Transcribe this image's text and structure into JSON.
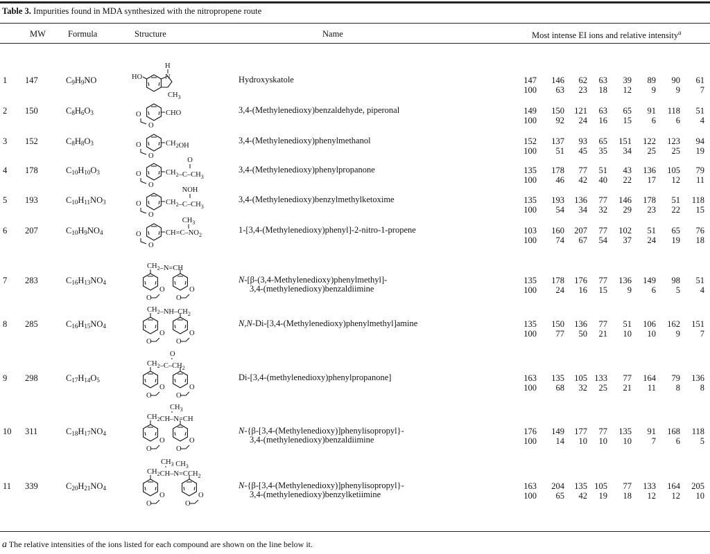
{
  "caption": {
    "label": "Table 3.",
    "text": "Impurities found in MDA synthesized with the nitropropene route"
  },
  "headers": {
    "mw": "MW",
    "formula": "Formula",
    "structure": "Structure",
    "name": "Name",
    "ions": "Most intense EI ions and relative intensity",
    "ions_footnote_mark": "a"
  },
  "rows": [
    {
      "no": "1",
      "mw": "147",
      "formula": "C9H9NO",
      "structure": {
        "type": "indole",
        "labels": [
          "HO",
          "H",
          "N",
          "CH3"
        ]
      },
      "name_prefix": "",
      "name": [
        "Hydroxyskatole"
      ],
      "ions": [
        "147",
        "146",
        "62",
        "63",
        "39",
        "89",
        "90",
        "61"
      ],
      "intensity": [
        "100",
        "63",
        "23",
        "18",
        "12",
        "9",
        "9",
        "7"
      ]
    },
    {
      "no": "2",
      "mw": "150",
      "formula": "C8H6O3",
      "structure": {
        "type": "mono",
        "substituent": "CHO",
        "top": ""
      },
      "name_prefix": "",
      "name": [
        "3,4-(Methylenedioxy)benzaldehyde, piperonal"
      ],
      "ions": [
        "149",
        "150",
        "121",
        "63",
        "65",
        "91",
        "118",
        "51"
      ],
      "intensity": [
        "100",
        "92",
        "24",
        "16",
        "15",
        "6",
        "6",
        "4"
      ]
    },
    {
      "no": "3",
      "mw": "152",
      "formula": "C8H8O3",
      "structure": {
        "type": "mono",
        "substituent": "CH2OH",
        "top": ""
      },
      "name_prefix": "",
      "name": [
        "3,4-(Methylenedioxy)phenylmethanol"
      ],
      "ions": [
        "152",
        "137",
        "93",
        "65",
        "151",
        "122",
        "123",
        "94"
      ],
      "intensity": [
        "100",
        "51",
        "45",
        "35",
        "34",
        "25",
        "25",
        "19"
      ]
    },
    {
      "no": "4",
      "mw": "178",
      "formula": "C10H10O3",
      "structure": {
        "type": "mono",
        "substituent": "CH2–C–CH3",
        "top": "O"
      },
      "name_prefix": "",
      "name": [
        "3,4-(Methylenedioxy)phenylpropanone"
      ],
      "ions": [
        "135",
        "178",
        "77",
        "51",
        "43",
        "136",
        "105",
        "79"
      ],
      "intensity": [
        "100",
        "46",
        "42",
        "40",
        "22",
        "17",
        "12",
        "11"
      ]
    },
    {
      "no": "5",
      "mw": "193",
      "formula": "C10H11NO3",
      "structure": {
        "type": "mono",
        "substituent": "CH2–C–CH3",
        "top": "NOH"
      },
      "name_prefix": "",
      "name": [
        "3,4-(Methylenedioxy)benzylmethylketoxime"
      ],
      "ions": [
        "135",
        "193",
        "136",
        "77",
        "146",
        "178",
        "51",
        "118"
      ],
      "intensity": [
        "100",
        "54",
        "34",
        "32",
        "29",
        "23",
        "22",
        "15"
      ]
    },
    {
      "no": "6",
      "mw": "207",
      "formula": "C10H9NO4",
      "structure": {
        "type": "mono",
        "substituent": "CH=C–NO2",
        "top": "CH3"
      },
      "name_prefix": "",
      "name": [
        "1-[3,4-(Methylenedioxy)phenyl]-2-nitro-1-propene"
      ],
      "ions": [
        "103",
        "160",
        "207",
        "77",
        "102",
        "51",
        "65",
        "76"
      ],
      "intensity": [
        "100",
        "74",
        "67",
        "54",
        "37",
        "24",
        "19",
        "18"
      ]
    },
    {
      "no": "7",
      "mw": "283",
      "formula": "C16H13NO4",
      "structure": {
        "type": "di",
        "chain": "CH2–N=CH",
        "top": ""
      },
      "name_prefix": "N",
      "name": [
        "-[β-(3,4-Methylenedioxy)phenylmethyl]-",
        "3,4-(methylenedioxy)benzaldiimine"
      ],
      "ions": [
        "135",
        "178",
        "176",
        "77",
        "136",
        "149",
        "98",
        "51"
      ],
      "intensity": [
        "100",
        "24",
        "16",
        "15",
        "9",
        "6",
        "5",
        "4"
      ]
    },
    {
      "no": "8",
      "mw": "285",
      "formula": "C16H15NO4",
      "structure": {
        "type": "di",
        "chain": "CH2–NH–CH2",
        "top": ""
      },
      "name_prefix": "N,N",
      "name": [
        "-Di-[3,4-(Methylenedioxy)phenylmethyl]amine"
      ],
      "ions": [
        "135",
        "150",
        "136",
        "77",
        "51",
        "106",
        "162",
        "151"
      ],
      "intensity": [
        "100",
        "77",
        "50",
        "21",
        "10",
        "10",
        "9",
        "7"
      ]
    },
    {
      "no": "9",
      "mw": "298",
      "formula": "C17H14O5",
      "structure": {
        "type": "di",
        "chain": "CH2–C–CH2",
        "top": "O"
      },
      "name_prefix": "",
      "name": [
        "Di-[3,4-(methylenedioxy)phenylpropanone]"
      ],
      "ions": [
        "163",
        "135",
        "105",
        "133",
        "77",
        "164",
        "79",
        "136"
      ],
      "intensity": [
        "100",
        "68",
        "32",
        "25",
        "21",
        "11",
        "8",
        "8"
      ]
    },
    {
      "no": "10",
      "mw": "311",
      "formula": "C18H17NO4",
      "structure": {
        "type": "di",
        "chain": "CH2CH–N=CH",
        "top": "CH3"
      },
      "name_prefix": "N",
      "name": [
        "-{β-[3,4-(Methylenedioxy)]phenylisopropyl}-",
        "3,4-(methylenedioxy)benzaldiimine"
      ],
      "ions": [
        "176",
        "149",
        "177",
        "77",
        "135",
        "91",
        "168",
        "118"
      ],
      "intensity": [
        "100",
        "14",
        "10",
        "10",
        "10",
        "7",
        "6",
        "5"
      ]
    },
    {
      "no": "11",
      "mw": "339",
      "formula": "C20H21NO4",
      "structure": {
        "type": "di",
        "chain": "CH2CH–N=CCH2",
        "top": "CH3   CH3"
      },
      "name_prefix": "N",
      "name": [
        "-{β-[3,4-(Methylenedioxy)]phenylisopropyl}-",
        "3,4-(methylenedioxy)benzylketiimine"
      ],
      "ions": [
        "163",
        "204",
        "135",
        "105",
        "77",
        "133",
        "164",
        "205"
      ],
      "intensity": [
        "100",
        "65",
        "42",
        "19",
        "18",
        "12",
        "12",
        "10"
      ]
    }
  ],
  "footnote": {
    "mark": "a",
    "text": "The relative intensities of the ions listed for each compound are shown on the line below it."
  }
}
